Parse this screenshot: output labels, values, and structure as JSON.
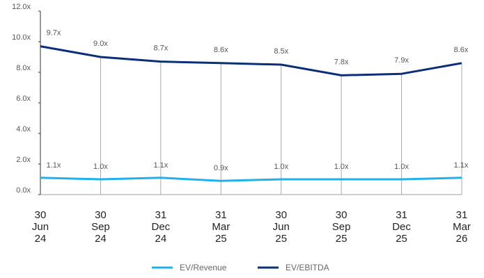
{
  "chart_data": {
    "type": "line",
    "categories": [
      [
        "30",
        "Jun",
        "24"
      ],
      [
        "30",
        "Sep",
        "24"
      ],
      [
        "31",
        "Dec",
        "24"
      ],
      [
        "31",
        "Mar",
        "25"
      ],
      [
        "30",
        "Jun",
        "25"
      ],
      [
        "30",
        "Sep",
        "25"
      ],
      [
        "31",
        "Dec",
        "25"
      ],
      [
        "31",
        "Mar",
        "26"
      ]
    ],
    "ylim": [
      0,
      12
    ],
    "yticks": [
      0,
      2,
      4,
      6,
      8,
      10,
      12
    ],
    "ytick_labels": [
      "0.0x",
      "2.0x",
      "4.0x",
      "6.0x",
      "8.0x",
      "10.0x",
      "12.0x"
    ],
    "grid": "vertical",
    "legend_position": "bottom-center",
    "series": [
      {
        "name": "EV/Revenue",
        "color": "#22b0ea",
        "values": [
          1.1,
          1.0,
          1.1,
          0.9,
          1.0,
          1.0,
          1.0,
          1.1
        ],
        "labels": [
          "1.1x",
          "1.0x",
          "1.1x",
          "0.9x",
          "1.0x",
          "1.0x",
          "1.0x",
          "1.1x"
        ]
      },
      {
        "name": "EV/EBITDA",
        "color": "#0b2e77",
        "values": [
          9.7,
          9.0,
          8.7,
          8.6,
          8.5,
          7.8,
          7.9,
          8.6
        ],
        "labels": [
          "9.7x",
          "9.0x",
          "8.7x",
          "8.6x",
          "8.5x",
          "7.8x",
          "7.9x",
          "8.6x"
        ]
      }
    ]
  }
}
